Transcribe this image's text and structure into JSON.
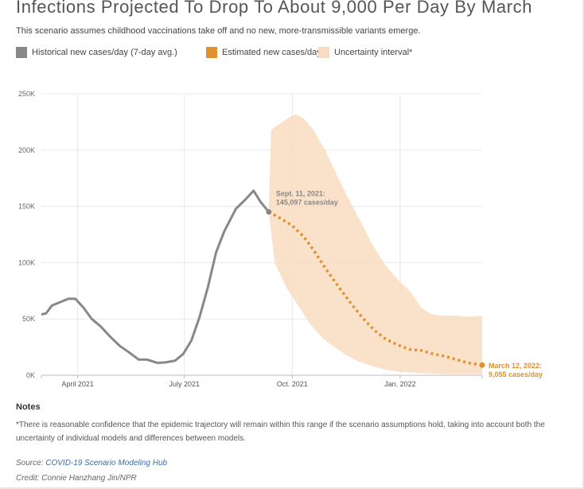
{
  "title": "Infections Projected To Drop To About 9,000 Per Day By March",
  "subtitle": "This scenario assumes childhood vaccinations take off and no new, more-transmissible variants emerge.",
  "legend": [
    {
      "label": "Historical new cases/day (7-day avg.)",
      "color": "#888888"
    },
    {
      "label": "Estimated new cases/day",
      "color": "#e0902f"
    },
    {
      "label": "Uncertainty interval*",
      "color": "#f9dcc0"
    }
  ],
  "notes": {
    "heading": "Notes",
    "text": "*There is reasonable confidence that the epidemic trajectory will remain within this range if the scenario assumptions hold, taking into account both the uncertainty of individual models and differences between models."
  },
  "source": {
    "prefix": "Source: ",
    "link_text": "COVID-19 Scenario Modeling Hub"
  },
  "credit": "Credit: Connie Hanzhang Jin/NPR",
  "chart_data": {
    "type": "line",
    "title": "Infections Projected To Drop To About 9,000 Per Day By March",
    "ylim": [
      0,
      250000
    ],
    "xlim": [
      "2021-03-01",
      "2022-03-12"
    ],
    "y_ticks": [
      0,
      50000,
      100000,
      150000,
      200000,
      250000
    ],
    "y_tick_labels": [
      "0K",
      "50K",
      "100K",
      "150K",
      "200K",
      "250K"
    ],
    "x_ticks": [
      "2021-04-01",
      "2021-07-01",
      "2021-10-01",
      "2022-01-01"
    ],
    "x_tick_labels": [
      "April 2021",
      "July 2021",
      "Oct. 2021",
      "Jan. 2022"
    ],
    "grid": true,
    "series": [
      {
        "name": "Historical new cases/day (7-day avg.)",
        "color": "#888888",
        "style": "solid",
        "points": [
          [
            "2021-03-01",
            54000
          ],
          [
            "2021-03-05",
            55000
          ],
          [
            "2021-03-10",
            62000
          ],
          [
            "2021-03-17",
            65000
          ],
          [
            "2021-03-24",
            68000
          ],
          [
            "2021-03-30",
            68000
          ],
          [
            "2021-04-06",
            60000
          ],
          [
            "2021-04-13",
            50000
          ],
          [
            "2021-04-21",
            43000
          ],
          [
            "2021-04-28",
            35000
          ],
          [
            "2021-05-07",
            26000
          ],
          [
            "2021-05-14",
            21000
          ],
          [
            "2021-05-23",
            14000
          ],
          [
            "2021-05-30",
            14000
          ],
          [
            "2021-06-08",
            11000
          ],
          [
            "2021-06-15",
            11500
          ],
          [
            "2021-06-23",
            13000
          ],
          [
            "2021-06-30",
            19000
          ],
          [
            "2021-07-07",
            31000
          ],
          [
            "2021-07-14",
            52000
          ],
          [
            "2021-07-21",
            78000
          ],
          [
            "2021-07-28",
            109000
          ],
          [
            "2021-08-04",
            128000
          ],
          [
            "2021-08-14",
            148000
          ],
          [
            "2021-08-21",
            155000
          ],
          [
            "2021-08-29",
            164000
          ],
          [
            "2021-09-04",
            154000
          ],
          [
            "2021-09-11",
            145097
          ]
        ]
      },
      {
        "name": "Estimated new cases/day",
        "color": "#e0902f",
        "style": "dotted",
        "points": [
          [
            "2021-09-11",
            145097
          ],
          [
            "2021-09-20",
            140000
          ],
          [
            "2021-10-01",
            133000
          ],
          [
            "2021-10-11",
            123000
          ],
          [
            "2021-10-20",
            110000
          ],
          [
            "2021-10-30",
            94000
          ],
          [
            "2021-11-10",
            78000
          ],
          [
            "2021-11-20",
            64000
          ],
          [
            "2021-11-30",
            51000
          ],
          [
            "2021-12-10",
            40000
          ],
          [
            "2021-12-20",
            32000
          ],
          [
            "2021-12-30",
            27000
          ],
          [
            "2022-01-09",
            23000
          ],
          [
            "2022-01-19",
            22000
          ],
          [
            "2022-01-29",
            19000
          ],
          [
            "2022-02-08",
            17000
          ],
          [
            "2022-02-18",
            14000
          ],
          [
            "2022-02-28",
            11000
          ],
          [
            "2022-03-12",
            9055
          ]
        ]
      }
    ],
    "uncertainty_interval": {
      "name": "Uncertainty interval*",
      "color": "#f9dcc0",
      "upper": [
        [
          "2021-09-11",
          145097
        ],
        [
          "2021-09-13",
          218000
        ],
        [
          "2021-09-20",
          223000
        ],
        [
          "2021-09-28",
          229000
        ],
        [
          "2021-10-04",
          232000
        ],
        [
          "2021-10-11",
          228000
        ],
        [
          "2021-10-19",
          218000
        ],
        [
          "2021-10-29",
          200000
        ],
        [
          "2021-11-08",
          178000
        ],
        [
          "2021-11-18",
          157000
        ],
        [
          "2021-11-29",
          135000
        ],
        [
          "2021-12-09",
          115000
        ],
        [
          "2021-12-20",
          97000
        ],
        [
          "2021-12-30",
          85000
        ],
        [
          "2022-01-10",
          74000
        ],
        [
          "2022-01-19",
          60000
        ],
        [
          "2022-01-28",
          54000
        ],
        [
          "2022-02-07",
          53000
        ],
        [
          "2022-02-18",
          53000
        ],
        [
          "2022-02-28",
          52000
        ],
        [
          "2022-03-12",
          53000
        ]
      ],
      "lower": [
        [
          "2021-09-11",
          145097
        ],
        [
          "2021-09-16",
          100000
        ],
        [
          "2021-09-26",
          78000
        ],
        [
          "2021-10-06",
          62000
        ],
        [
          "2021-10-16",
          46000
        ],
        [
          "2021-10-27",
          33000
        ],
        [
          "2021-11-06",
          25000
        ],
        [
          "2021-11-16",
          18000
        ],
        [
          "2021-11-27",
          12000
        ],
        [
          "2021-12-09",
          8000
        ],
        [
          "2021-12-19",
          5000
        ],
        [
          "2022-01-01",
          3000
        ],
        [
          "2022-01-19",
          2000
        ],
        [
          "2022-02-07",
          1000
        ],
        [
          "2022-03-12",
          1000
        ]
      ]
    },
    "annotations": [
      {
        "text": [
          "Sept. 11, 2021:",
          "145,097 cases/day"
        ],
        "x": "2021-09-11",
        "y": 145097,
        "color": "#888888"
      },
      {
        "text": [
          "March 12, 2022:",
          "9,055 cases/day"
        ],
        "x": "2022-03-12",
        "y": 9055,
        "color": "#e0902f"
      }
    ]
  }
}
